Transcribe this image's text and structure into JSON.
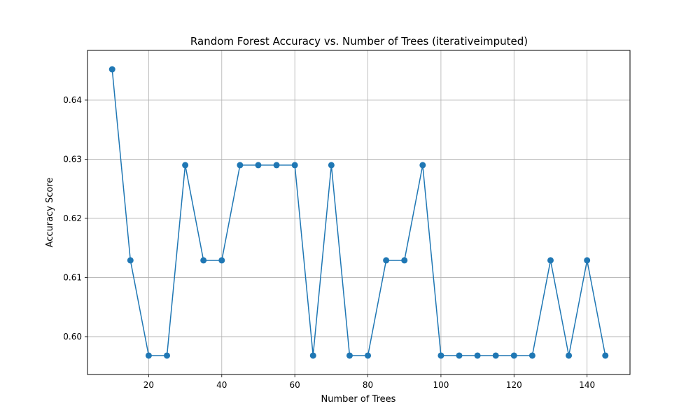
{
  "chart_data": {
    "type": "line",
    "title": "Random Forest Accuracy vs. Number of Trees (iterativeimputed)",
    "xlabel": "Number of Trees",
    "ylabel": "Accuracy Score",
    "xlim": [
      3.25,
      151.75
    ],
    "ylim": [
      0.5936,
      0.6484
    ],
    "xticks": [
      20,
      40,
      60,
      80,
      100,
      120,
      140
    ],
    "yticks": [
      0.6,
      0.61,
      0.62,
      0.63,
      0.64
    ],
    "xtick_labels": [
      "20",
      "40",
      "60",
      "80",
      "100",
      "120",
      "140"
    ],
    "ytick_labels": [
      "0.60",
      "0.61",
      "0.62",
      "0.63",
      "0.64"
    ],
    "grid": true,
    "marker": "circle",
    "color": "#1f77b4",
    "series": [
      {
        "x": [
          10,
          15,
          20,
          25,
          30,
          35,
          40,
          45,
          50,
          55,
          60,
          65,
          70,
          75,
          80,
          85,
          90,
          95,
          100,
          105,
          110,
          115,
          120,
          125,
          130,
          135,
          140,
          145
        ],
        "values": [
          0.6452,
          0.6129,
          0.5968,
          0.5968,
          0.629,
          0.6129,
          0.6129,
          0.629,
          0.629,
          0.629,
          0.629,
          0.5968,
          0.629,
          0.5968,
          0.5968,
          0.6129,
          0.6129,
          0.629,
          0.5968,
          0.5968,
          0.5968,
          0.5968,
          0.5968,
          0.5968,
          0.6129,
          0.5968,
          0.6129,
          0.5968
        ]
      }
    ]
  }
}
